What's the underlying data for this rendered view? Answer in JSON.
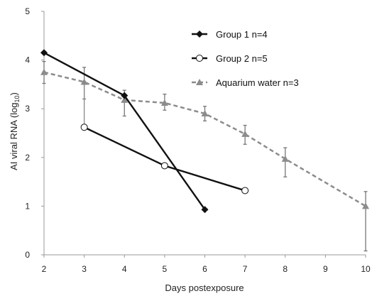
{
  "chart_data": {
    "type": "line",
    "title": "",
    "xlabel": "Days postexposure",
    "ylabel_main": "AI viral RNA (log",
    "ylabel_sub": "10",
    "ylabel_close": ")",
    "xlim": [
      2,
      10
    ],
    "ylim": [
      0,
      5
    ],
    "xticks": [
      2,
      3,
      4,
      5,
      6,
      7,
      8,
      9,
      10
    ],
    "yticks": [
      0,
      1,
      2,
      3,
      4,
      5
    ],
    "grid": false,
    "legend_position": "top-right",
    "series": [
      {
        "name": "Group 1 n=4",
        "marker": "diamond",
        "color": "#111111",
        "dash": "solid",
        "x": [
          2,
          4,
          6
        ],
        "y": [
          4.15,
          3.27,
          0.93
        ],
        "error_low": [],
        "error_high": []
      },
      {
        "name": "Group 2 n=5",
        "marker": "circle-open",
        "color": "#111111",
        "dash": "solid",
        "x": [
          3,
          5,
          7
        ],
        "y": [
          2.62,
          1.83,
          1.32
        ],
        "error_low": [
          2.62,
          1.83,
          1.32
        ],
        "error_high": [
          3.55,
          1.83,
          1.32
        ]
      },
      {
        "name": "Aquarium water n=3",
        "marker": "triangle",
        "color": "#8c8c8c",
        "dash": "dashed",
        "x": [
          2,
          3,
          4,
          5,
          6,
          7,
          8,
          10
        ],
        "y": [
          3.75,
          3.55,
          3.18,
          3.12,
          2.9,
          2.48,
          1.97,
          1.0
        ],
        "error_low": [
          3.52,
          3.2,
          2.85,
          2.97,
          2.75,
          2.27,
          1.6,
          0.08
        ],
        "error_high": [
          3.97,
          3.85,
          3.38,
          3.3,
          3.05,
          2.66,
          2.2,
          1.3
        ]
      }
    ]
  }
}
